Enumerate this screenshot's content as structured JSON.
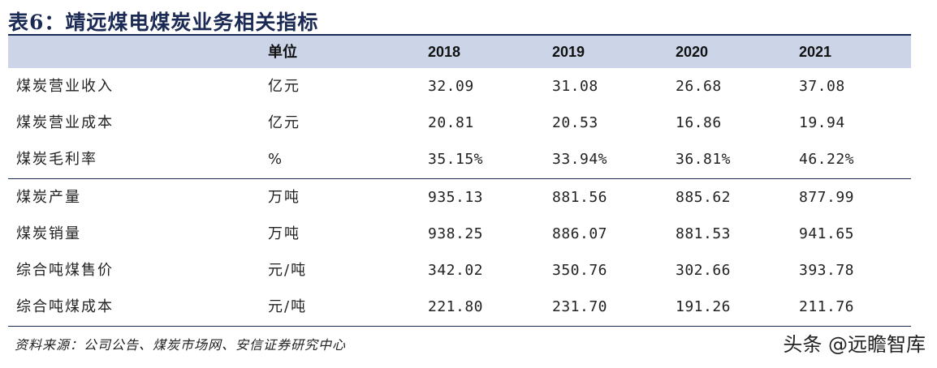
{
  "title": "表6：靖远煤电煤炭业务相关指标",
  "header": {
    "unit": "单位",
    "years": [
      "2018",
      "2019",
      "2020",
      "2021"
    ]
  },
  "rows": [
    {
      "label": "煤炭营业收入",
      "unit": "亿元",
      "values": [
        "32.09",
        "31.08",
        "26.68",
        "37.08"
      ]
    },
    {
      "label": "煤炭营业成本",
      "unit": "亿元",
      "values": [
        "20.81",
        "20.53",
        "16.86",
        "19.94"
      ]
    },
    {
      "label": "煤炭毛利率",
      "unit": "%",
      "values": [
        "35.15%",
        "33.94%",
        "36.81%",
        "46.22%"
      ]
    },
    {
      "label": "煤炭产量",
      "unit": "万吨",
      "values": [
        "935.13",
        "881.56",
        "885.62",
        "877.99"
      ]
    },
    {
      "label": "煤炭销量",
      "unit": "万吨",
      "values": [
        "938.25",
        "886.07",
        "881.53",
        "941.65"
      ]
    },
    {
      "label": "综合吨煤售价",
      "unit": "元/吨",
      "values": [
        "342.02",
        "350.76",
        "302.66",
        "393.78"
      ]
    },
    {
      "label": "综合吨煤成本",
      "unit": "元/吨",
      "values": [
        "221.80",
        "231.70",
        "191.26",
        "211.76"
      ]
    }
  ],
  "source": "资料来源：公司公告、煤炭市场网、安信证券研究中心",
  "watermark": "头条 @远瞻智库"
}
